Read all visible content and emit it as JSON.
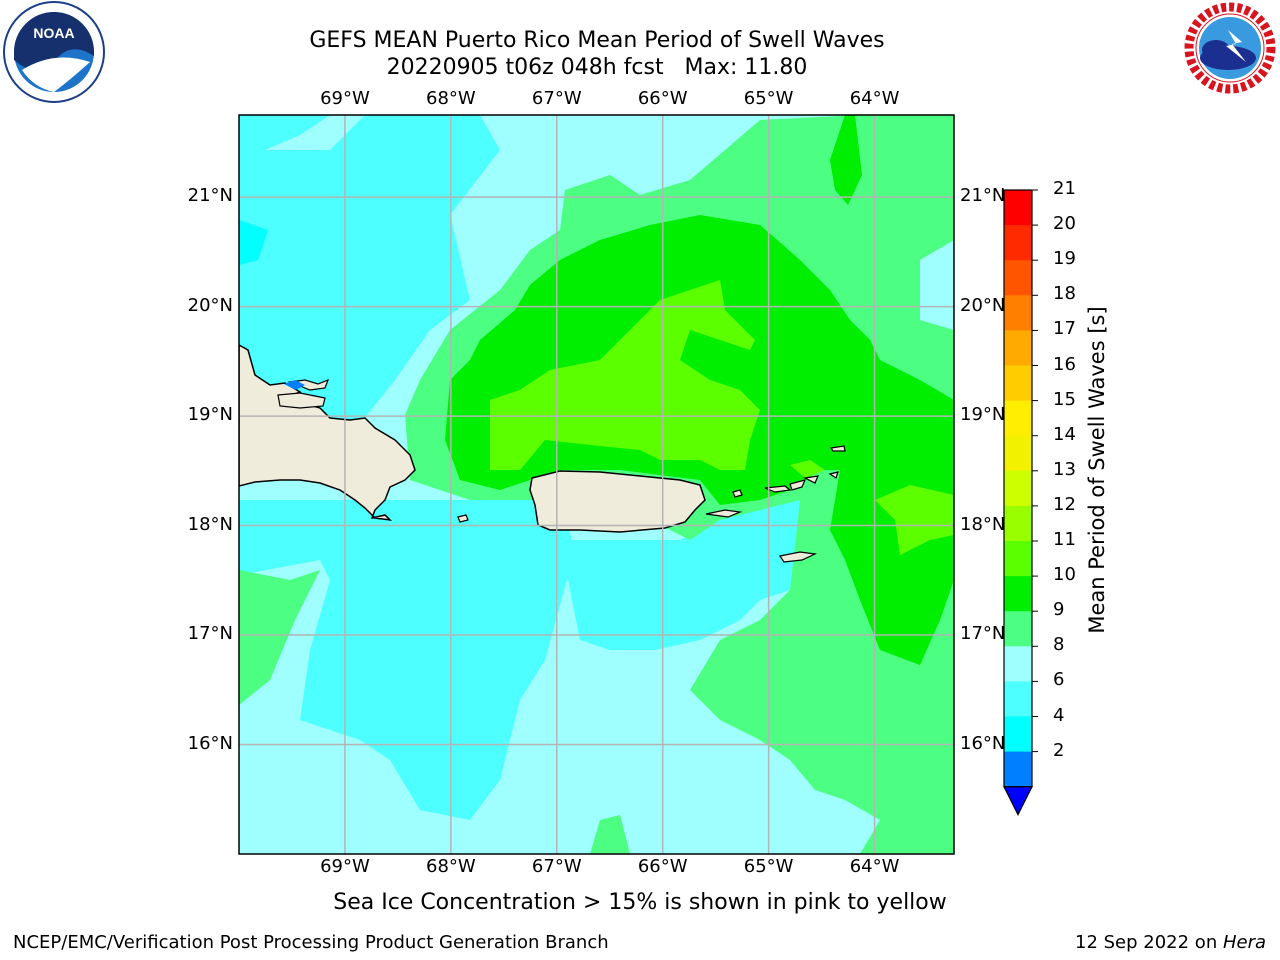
{
  "title": {
    "line1": "GEFS MEAN Puerto Rico Mean Period of Swell Waves",
    "line2": "20220905 t06z 048h fcst   Max: 11.80"
  },
  "logos": {
    "left": {
      "icon": "noaa-logo",
      "text": "NOAA"
    },
    "right": {
      "icon": "nws-logo",
      "text": "NATIONAL WEATHER SERVICE"
    }
  },
  "map": {
    "lon_labels": [
      "69°W",
      "68°W",
      "67°W",
      "66°W",
      "65°W",
      "64°W"
    ],
    "lat_labels": [
      "21°N",
      "20°N",
      "19°N",
      "18°N",
      "17°N",
      "16°N"
    ],
    "lon_values": [
      -69,
      -68,
      -67,
      -66,
      -65,
      -64
    ],
    "lat_values": [
      21,
      20,
      19,
      18,
      17,
      16
    ],
    "extent": {
      "lon_min": -70.0,
      "lon_max": -63.25,
      "lat_min": 15.0,
      "lat_max": 21.75
    },
    "land_color": "#efecdc",
    "grid_color": "#b4b4b4"
  },
  "colorbar": {
    "title": "Mean Period of Swell Waves [s]",
    "ticks": [
      "21",
      "20",
      "19",
      "18",
      "17",
      "16",
      "15",
      "14",
      "13",
      "12",
      "11",
      "10",
      "9",
      "8",
      "6",
      "4",
      "2"
    ],
    "colors": [
      "#ff0000",
      "#ff2a00",
      "#ff5500",
      "#ff8000",
      "#ffaa00",
      "#ffcc00",
      "#ffee00",
      "#f2f200",
      "#ccff00",
      "#99ff00",
      "#5cff00",
      "#00ee00",
      "#4cff82",
      "#9fffff",
      "#4dffff",
      "#00ffff",
      "#0080ff"
    ],
    "under_color": "#0000ff"
  },
  "note": "Sea Ice Concentration > 15% is shown in pink to yellow",
  "footer": {
    "left": "NCEP/EMC/Verification Post Processing Product Generation Branch",
    "right_prefix": "12 Sep 2022 on ",
    "right_host": "Hera"
  }
}
